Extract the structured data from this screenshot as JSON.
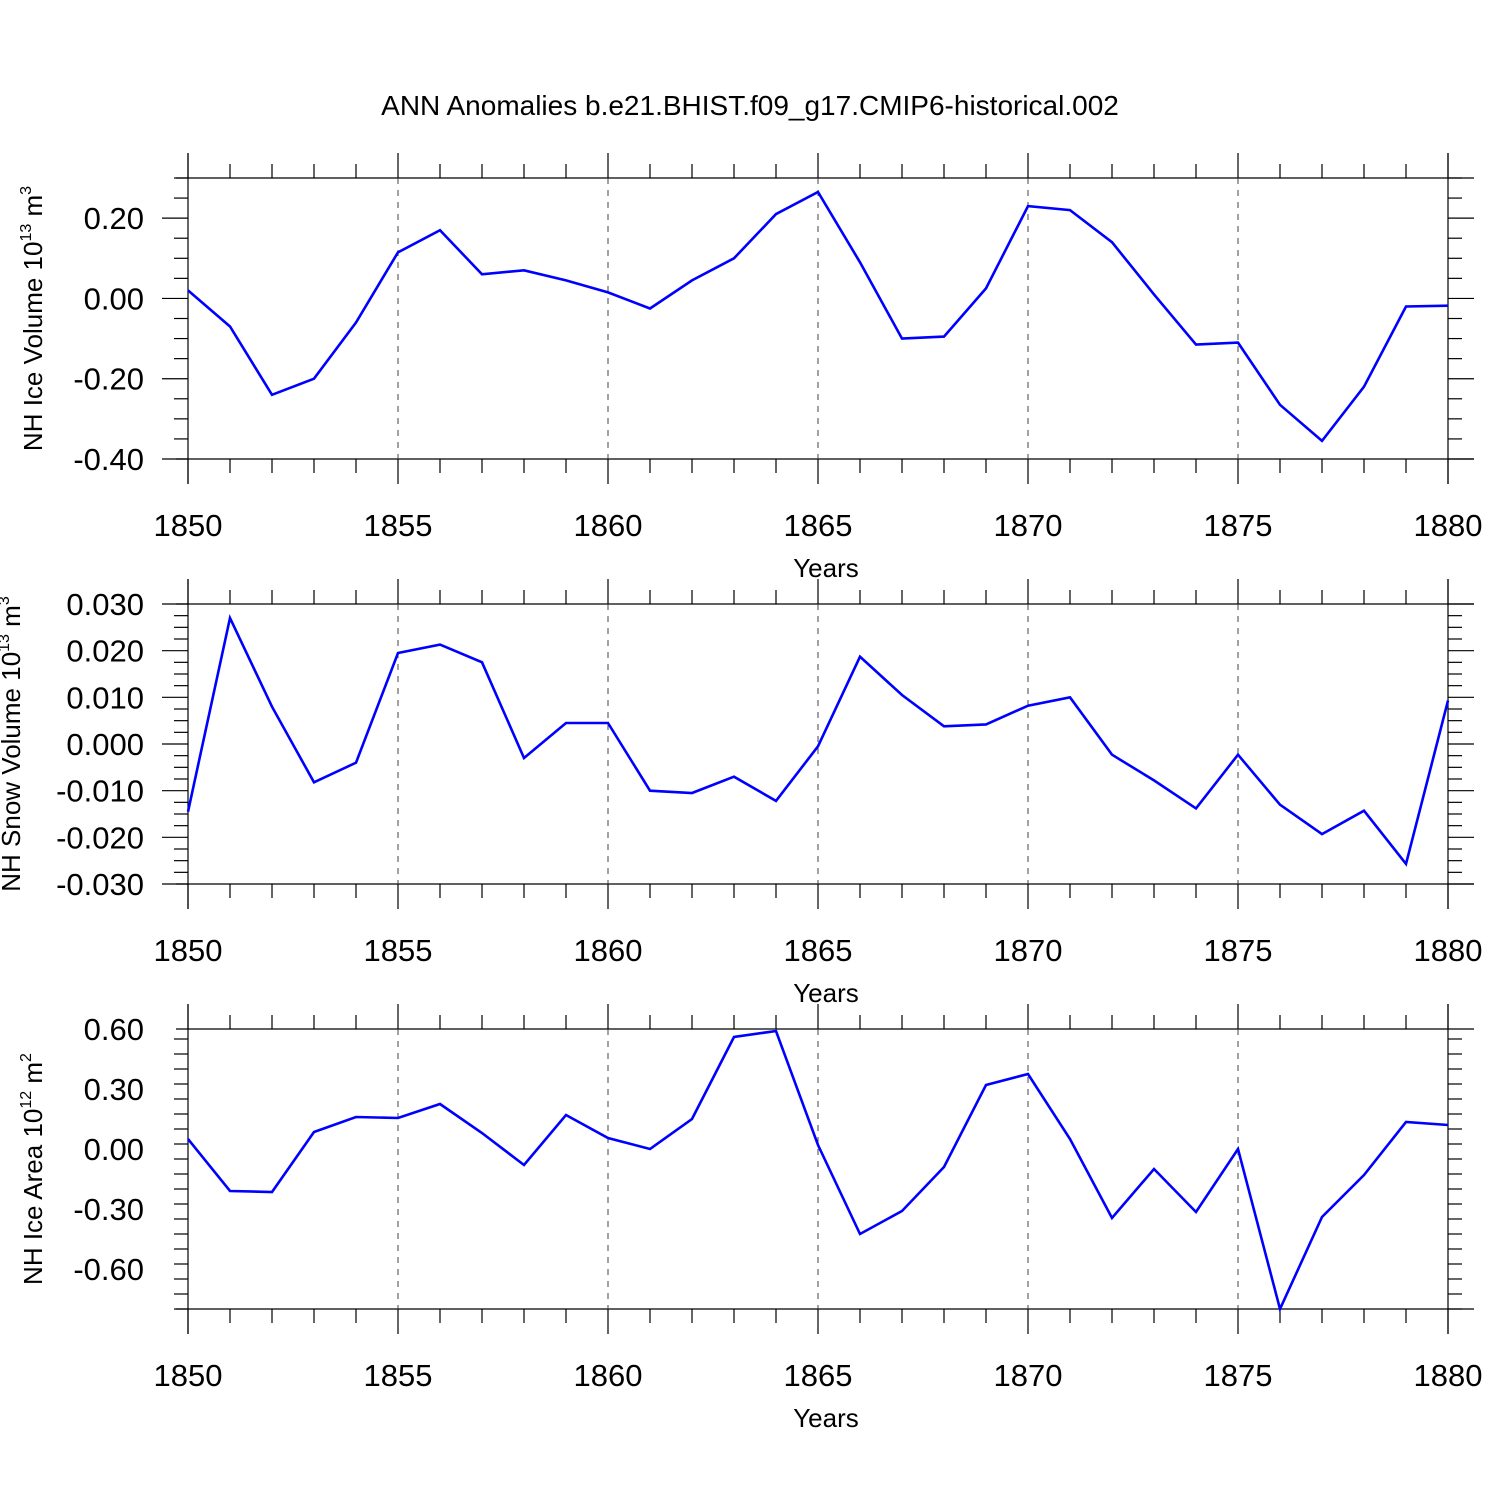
{
  "title": "ANN Anomalies b.e21.BHIST.f09_g17.CMIP6-historical.002",
  "colors": {
    "series": "#0000ff",
    "axis": "#000000"
  },
  "chart_data": [
    {
      "type": "line",
      "ylabel_main": "NH Ice Volume 10",
      "ylabel_exp": "13",
      "ylabel_unit": " m",
      "ylabel_unit_exp": "3",
      "xlabel": "Years",
      "xlim": [
        1850,
        1880
      ],
      "ylim": [
        -0.4,
        0.3
      ],
      "yticks": [
        -0.4,
        -0.2,
        0.0,
        0.2
      ],
      "ytick_labels": [
        "-0.40",
        "-0.20",
        "0.00",
        "0.20"
      ],
      "xticks": [
        1850,
        1855,
        1860,
        1865,
        1870,
        1875,
        1880
      ],
      "grid": "dashed vertical at major x ticks",
      "x": [
        1850,
        1851,
        1852,
        1853,
        1854,
        1855,
        1856,
        1857,
        1858,
        1859,
        1860,
        1861,
        1862,
        1863,
        1864,
        1865,
        1866,
        1867,
        1868,
        1869,
        1870,
        1871,
        1872,
        1873,
        1874,
        1875,
        1876,
        1877,
        1878,
        1879,
        1880
      ],
      "values": [
        0.02,
        -0.07,
        -0.24,
        -0.2,
        -0.06,
        0.115,
        0.17,
        0.06,
        0.07,
        0.045,
        0.015,
        -0.025,
        0.045,
        0.1,
        0.21,
        0.265,
        0.09,
        -0.1,
        -0.095,
        0.025,
        0.23,
        0.22,
        0.14,
        0.01,
        -0.115,
        -0.11,
        -0.265,
        -0.355,
        -0.22,
        -0.02,
        -0.018
      ]
    },
    {
      "type": "line",
      "ylabel_main": "NH Snow Volume 10",
      "ylabel_exp": "13",
      "ylabel_unit": " m",
      "ylabel_unit_exp": "3",
      "xlabel": "Years",
      "xlim": [
        1850,
        1880
      ],
      "ylim": [
        -0.03,
        0.03
      ],
      "yticks": [
        -0.03,
        -0.02,
        -0.01,
        0.0,
        0.01,
        0.02,
        0.03
      ],
      "ytick_labels": [
        "-0.030",
        "-0.020",
        "-0.010",
        "0.000",
        "0.010",
        "0.020",
        "0.030"
      ],
      "xticks": [
        1850,
        1855,
        1860,
        1865,
        1870,
        1875,
        1880
      ],
      "grid": "dashed vertical at major x ticks",
      "x": [
        1850,
        1851,
        1852,
        1853,
        1854,
        1855,
        1856,
        1857,
        1858,
        1859,
        1860,
        1861,
        1862,
        1863,
        1864,
        1865,
        1866,
        1867,
        1868,
        1869,
        1870,
        1871,
        1872,
        1873,
        1874,
        1875,
        1876,
        1877,
        1878,
        1879,
        1880
      ],
      "values": [
        -0.0145,
        0.027,
        0.008,
        -0.0082,
        -0.004,
        0.0195,
        0.0213,
        0.0175,
        -0.003,
        0.0045,
        0.0045,
        -0.01,
        -0.0105,
        -0.007,
        -0.0122,
        -0.0005,
        0.0187,
        0.0105,
        0.0038,
        0.0042,
        0.0082,
        0.01,
        -0.0023,
        -0.0078,
        -0.0138,
        -0.0023,
        -0.013,
        -0.0193,
        -0.0143,
        -0.0257,
        0.0093
      ]
    },
    {
      "type": "line",
      "ylabel_main": "NH Ice Area 10",
      "ylabel_exp": "12",
      "ylabel_unit": " m",
      "ylabel_unit_exp": "2",
      "xlabel": "Years",
      "xlim": [
        1850,
        1880
      ],
      "ylim": [
        -0.8,
        0.6
      ],
      "yticks": [
        -0.6,
        -0.3,
        0.0,
        0.3,
        0.6
      ],
      "ytick_labels": [
        "-0.60",
        "-0.30",
        "0.00",
        "0.30",
        "0.60"
      ],
      "xticks": [
        1850,
        1855,
        1860,
        1865,
        1870,
        1875,
        1880
      ],
      "grid": "dashed vertical at major x ticks",
      "x": [
        1850,
        1851,
        1852,
        1853,
        1854,
        1855,
        1856,
        1857,
        1858,
        1859,
        1860,
        1861,
        1862,
        1863,
        1864,
        1865,
        1866,
        1867,
        1868,
        1869,
        1870,
        1871,
        1872,
        1873,
        1874,
        1875,
        1876,
        1877,
        1878,
        1879,
        1880
      ],
      "values": [
        0.05,
        -0.21,
        -0.215,
        0.085,
        0.16,
        0.155,
        0.225,
        0.08,
        -0.08,
        0.17,
        0.055,
        0.0,
        0.15,
        0.56,
        0.59,
        0.02,
        -0.425,
        -0.31,
        -0.09,
        0.32,
        0.375,
        0.05,
        -0.345,
        -0.1,
        -0.315,
        0.0,
        -0.8,
        -0.34,
        -0.13,
        0.135,
        0.12
      ]
    }
  ]
}
